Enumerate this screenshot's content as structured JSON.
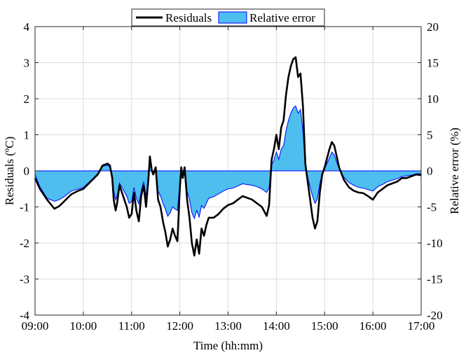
{
  "chart_data": {
    "type": "line",
    "xlabel": "Time (hh:mm)",
    "ylabel_left": "Residuals (ºC)",
    "ylabel_right": "Relative error (%)",
    "x_ticks": [
      "09:00",
      "10:00",
      "11:00",
      "12:00",
      "13:00",
      "14:00",
      "15:00",
      "16:00",
      "17:00"
    ],
    "x_range_hours": [
      9,
      17
    ],
    "ylim_left": [
      -4,
      4
    ],
    "ylim_right": [
      -20,
      20
    ],
    "y_ticks_left": [
      "-4",
      "-3",
      "-2",
      "-1",
      "0",
      "1",
      "2",
      "3",
      "4"
    ],
    "y_ticks_right": [
      "-20",
      "-15",
      "-10",
      "-5",
      "0",
      "5",
      "10",
      "15",
      "20"
    ],
    "grid": true,
    "legend_position": "top-center",
    "legend": [
      {
        "label": "Residuals",
        "kind": "line",
        "color": "#000000"
      },
      {
        "label": "Relative error",
        "kind": "area",
        "color": "#4dbeee",
        "edge": "#0000ff"
      }
    ],
    "series": [
      {
        "name": "Residuals",
        "axis": "left",
        "color": "#000000",
        "x": [
          9.0,
          9.1,
          9.25,
          9.4,
          9.5,
          9.6,
          9.75,
          9.9,
          10.0,
          10.15,
          10.3,
          10.4,
          10.5,
          10.55,
          10.6,
          10.63,
          10.67,
          10.7,
          10.75,
          10.8,
          10.9,
          10.95,
          11.0,
          11.05,
          11.1,
          11.15,
          11.2,
          11.25,
          11.3,
          11.35,
          11.38,
          11.42,
          11.45,
          11.5,
          11.55,
          11.6,
          11.65,
          11.7,
          11.75,
          11.8,
          11.85,
          11.9,
          11.95,
          12.0,
          12.03,
          12.06,
          12.1,
          12.15,
          12.2,
          12.25,
          12.3,
          12.35,
          12.4,
          12.45,
          12.5,
          12.55,
          12.6,
          12.7,
          12.8,
          12.9,
          13.0,
          13.1,
          13.2,
          13.3,
          13.4,
          13.5,
          13.6,
          13.7,
          13.8,
          13.85,
          13.9,
          13.95,
          14.0,
          14.05,
          14.1,
          14.15,
          14.2,
          14.25,
          14.3,
          14.35,
          14.4,
          14.45,
          14.5,
          14.55,
          14.6,
          14.65,
          14.7,
          14.75,
          14.8,
          14.85,
          14.9,
          14.95,
          15.0,
          15.1,
          15.15,
          15.2,
          15.25,
          15.3,
          15.4,
          15.5,
          15.6,
          15.7,
          15.8,
          15.9,
          16.0,
          16.1,
          16.2,
          16.3,
          16.4,
          16.5,
          16.6,
          16.7,
          16.8,
          16.9,
          17.0
        ],
        "y": [
          -0.2,
          -0.5,
          -0.8,
          -1.05,
          -0.98,
          -0.85,
          -0.65,
          -0.55,
          -0.5,
          -0.3,
          -0.1,
          0.15,
          0.2,
          0.15,
          -0.2,
          -0.8,
          -1.1,
          -0.9,
          -0.4,
          -0.6,
          -1.0,
          -1.3,
          -1.2,
          -0.6,
          -1.1,
          -1.4,
          -0.7,
          -0.4,
          -1.0,
          -0.2,
          0.4,
          0.0,
          -0.1,
          0.1,
          -0.8,
          -1.0,
          -1.4,
          -1.7,
          -2.1,
          -1.9,
          -1.6,
          -1.8,
          -1.95,
          -0.5,
          0.1,
          -0.2,
          0.1,
          -0.8,
          -1.3,
          -2.0,
          -2.35,
          -1.9,
          -2.3,
          -1.6,
          -1.8,
          -1.5,
          -1.3,
          -1.3,
          -1.2,
          -1.05,
          -0.95,
          -0.9,
          -0.8,
          -0.7,
          -0.75,
          -0.8,
          -0.9,
          -1.0,
          -1.25,
          -0.95,
          0.3,
          0.6,
          1.0,
          0.6,
          1.2,
          1.4,
          2.1,
          2.6,
          2.9,
          3.1,
          3.15,
          2.6,
          2.7,
          1.8,
          0.2,
          -0.3,
          -0.8,
          -1.3,
          -1.6,
          -1.4,
          -0.6,
          -0.1,
          0.1,
          0.6,
          0.8,
          0.7,
          0.4,
          0.1,
          -0.25,
          -0.45,
          -0.55,
          -0.6,
          -0.62,
          -0.7,
          -0.8,
          -0.6,
          -0.5,
          -0.4,
          -0.35,
          -0.3,
          -0.2,
          -0.2,
          -0.15,
          -0.1,
          -0.12
        ]
      },
      {
        "name": "Relative error",
        "axis": "right",
        "color": "#4dbeee",
        "x": [
          9.0,
          9.1,
          9.25,
          9.4,
          9.5,
          9.6,
          9.75,
          9.9,
          10.0,
          10.15,
          10.3,
          10.4,
          10.5,
          10.55,
          10.6,
          10.63,
          10.67,
          10.7,
          10.75,
          10.8,
          10.9,
          10.95,
          11.0,
          11.05,
          11.1,
          11.15,
          11.2,
          11.25,
          11.3,
          11.35,
          11.38,
          11.42,
          11.45,
          11.5,
          11.55,
          11.6,
          11.65,
          11.7,
          11.75,
          11.8,
          11.85,
          11.9,
          11.95,
          12.0,
          12.03,
          12.06,
          12.1,
          12.15,
          12.2,
          12.25,
          12.3,
          12.35,
          12.4,
          12.45,
          12.5,
          12.55,
          12.6,
          12.7,
          12.8,
          12.9,
          13.0,
          13.1,
          13.2,
          13.3,
          13.4,
          13.5,
          13.6,
          13.7,
          13.8,
          13.85,
          13.9,
          13.95,
          14.0,
          14.05,
          14.1,
          14.15,
          14.2,
          14.25,
          14.3,
          14.35,
          14.4,
          14.45,
          14.5,
          14.55,
          14.6,
          14.65,
          14.7,
          14.75,
          14.8,
          14.85,
          14.9,
          14.95,
          15.0,
          15.1,
          15.15,
          15.2,
          15.25,
          15.3,
          15.4,
          15.5,
          15.6,
          15.7,
          15.8,
          15.9,
          16.0,
          16.1,
          16.2,
          16.3,
          16.4,
          16.5,
          16.6,
          16.7,
          16.8,
          16.9,
          17.0
        ],
        "y": [
          -0.5,
          -2.2,
          -3.8,
          -4.2,
          -4.0,
          -3.6,
          -2.8,
          -2.5,
          -2.3,
          -1.4,
          -0.5,
          0.6,
          0.8,
          0.5,
          -0.8,
          -2.8,
          -4.0,
          -3.5,
          -1.7,
          -2.3,
          -3.5,
          -4.5,
          -4.3,
          -2.3,
          -3.8,
          -4.6,
          -2.8,
          -1.5,
          -3.5,
          -0.8,
          1.5,
          0.0,
          -0.5,
          0.3,
          -2.8,
          -3.5,
          -4.5,
          -5.3,
          -6.3,
          -5.8,
          -5.0,
          -5.3,
          -5.5,
          -1.7,
          0.3,
          -0.8,
          0.3,
          -2.8,
          -4.0,
          -5.8,
          -6.6,
          -5.5,
          -6.4,
          -4.8,
          -5.2,
          -4.5,
          -3.8,
          -3.6,
          -3.2,
          -2.8,
          -2.5,
          -2.4,
          -2.1,
          -1.8,
          -1.9,
          -2.0,
          -2.2,
          -2.5,
          -3.0,
          -2.3,
          0.8,
          1.5,
          2.6,
          1.6,
          3.0,
          3.5,
          5.5,
          7.0,
          8.0,
          8.7,
          9.0,
          8.0,
          8.5,
          5.5,
          0.8,
          -0.9,
          -2.3,
          -3.5,
          -4.5,
          -3.9,
          -1.8,
          -0.3,
          0.3,
          1.8,
          2.6,
          2.2,
          1.2,
          0.3,
          -0.9,
          -1.6,
          -2.0,
          -2.3,
          -2.4,
          -2.6,
          -2.8,
          -2.2,
          -1.9,
          -1.5,
          -1.3,
          -1.1,
          -0.8,
          -0.7,
          -0.6,
          -0.4,
          -0.4
        ]
      }
    ]
  }
}
